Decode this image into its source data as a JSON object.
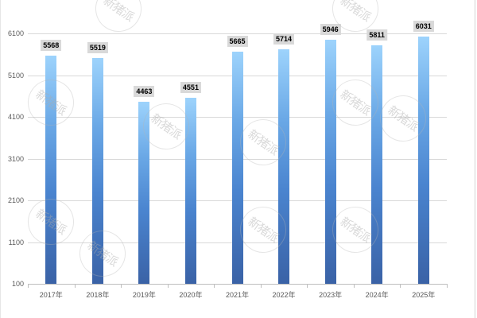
{
  "chart_data": {
    "type": "bar",
    "title": "",
    "xlabel": "",
    "ylabel": "",
    "categories": [
      "2017年",
      "2018年",
      "2019年",
      "2020年",
      "2021年",
      "2022年",
      "2023年",
      "2024年",
      "2025年"
    ],
    "values": [
      5568,
      5519,
      4463,
      4551,
      5665,
      5714,
      5946,
      5811,
      6031
    ],
    "yticks": [
      100,
      1100,
      2100,
      3100,
      4100,
      5100,
      6100
    ],
    "ytick_labels": [
      "100",
      "1100",
      "2100",
      "3100",
      "4100",
      "5100",
      "6100"
    ],
    "ylim": [
      100,
      6100
    ],
    "grid": true,
    "legend": null,
    "data_labels": true,
    "bar_gradient": [
      "#9dd3fc",
      "#3a62a6"
    ]
  },
  "watermark": {
    "text": "新猪派"
  }
}
